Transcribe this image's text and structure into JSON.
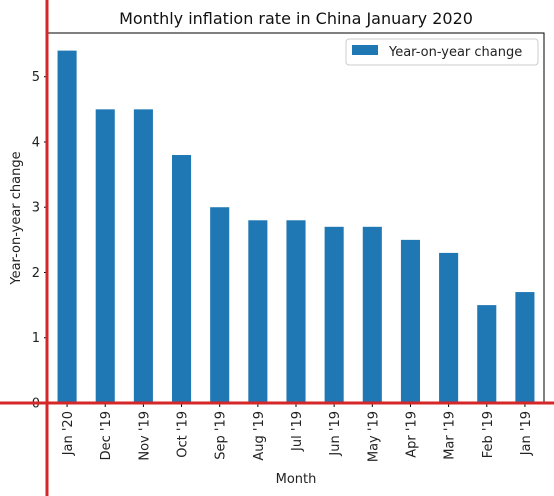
{
  "chart_data": {
    "type": "bar",
    "title": "Monthly inflation rate in China January 2020",
    "xlabel": "Month",
    "ylabel": "Year-on-year change",
    "categories": [
      "Jan '20",
      "Dec '19",
      "Nov '19",
      "Oct '19",
      "Sep '19",
      "Aug '19",
      "Jul '19",
      "Jun '19",
      "May '19",
      "Apr '19",
      "Mar '19",
      "Feb '19",
      "Jan '19"
    ],
    "series": [
      {
        "name": "Year-on-year change",
        "values": [
          5.4,
          4.5,
          4.5,
          3.8,
          3.0,
          2.8,
          2.8,
          2.7,
          2.7,
          2.5,
          2.3,
          1.5,
          1.7
        ],
        "color": "#1f77b4"
      }
    ],
    "yticks": [
      0,
      1,
      2,
      3,
      4,
      5
    ],
    "ylim": [
      0,
      5.67
    ],
    "grid": false,
    "legend_position": "top-right",
    "overlay_line_color": "#d62728"
  }
}
